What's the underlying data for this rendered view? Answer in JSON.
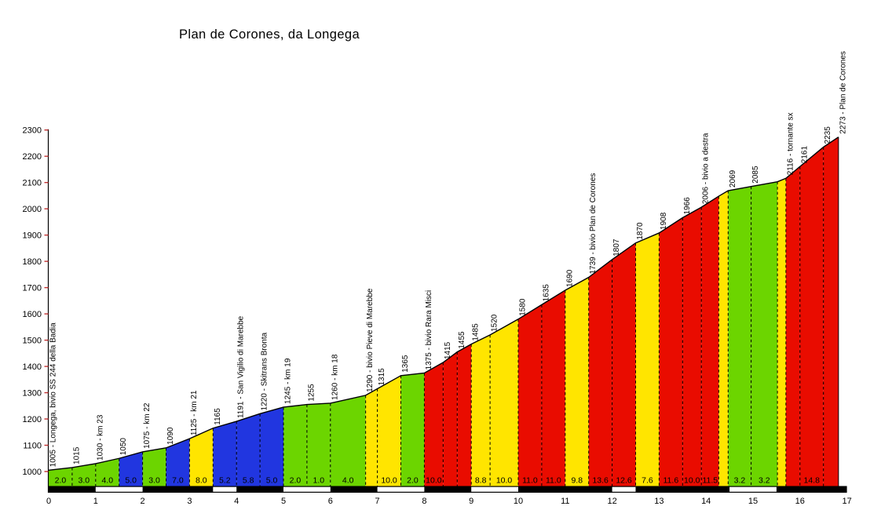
{
  "title": "Plan de Corones, da Longega",
  "chart_data": {
    "type": "area",
    "title": "Plan de Corones, da Longega",
    "xlabel": "",
    "ylabel": "",
    "xlim": [
      0,
      17
    ],
    "ylim": [
      1000,
      2300
    ],
    "grid": false,
    "legend": "none",
    "x_ticks": [
      0,
      1,
      2,
      3,
      4,
      5,
      6,
      7,
      8,
      9,
      10,
      11,
      12,
      13,
      14,
      15,
      16,
      17
    ],
    "y_ticks": [
      1000,
      1100,
      1200,
      1300,
      1400,
      1500,
      1600,
      1700,
      1800,
      1900,
      2000,
      2100,
      2200,
      2300
    ],
    "palette": {
      "green": "#6CD500",
      "blue": "#2136E0",
      "yellow": "#FFE500",
      "red": "#E90C00",
      "axis_tick_red": "#C03030",
      "line_black": "#000000"
    },
    "points": [
      {
        "km": 0.0,
        "elev": 1005,
        "label": "1005 - Longega, bivio SS 244 della Badia"
      },
      {
        "km": 0.5,
        "elev": 1015,
        "label": "1015"
      },
      {
        "km": 1.0,
        "elev": 1030,
        "label": "1030 - km 23"
      },
      {
        "km": 1.5,
        "elev": 1050,
        "label": "1050"
      },
      {
        "km": 2.0,
        "elev": 1075,
        "label": "1075 - km 22"
      },
      {
        "km": 2.5,
        "elev": 1090,
        "label": "1090"
      },
      {
        "km": 3.0,
        "elev": 1125,
        "label": "1125 - km 21"
      },
      {
        "km": 3.5,
        "elev": 1165,
        "label": "1165"
      },
      {
        "km": 4.0,
        "elev": 1191,
        "label": "1191 - San Vigilio di Marebbe"
      },
      {
        "km": 4.5,
        "elev": 1220,
        "label": "1220 - Skitrans Bronta"
      },
      {
        "km": 5.0,
        "elev": 1245,
        "label": "1245 - km 19"
      },
      {
        "km": 5.5,
        "elev": 1255,
        "label": "1255"
      },
      {
        "km": 6.0,
        "elev": 1260,
        "label": "1260 - km 18"
      },
      {
        "km": 6.75,
        "elev": 1290,
        "label": "1290 - bivio Pieve di Marebbe"
      },
      {
        "km": 7.0,
        "elev": 1315,
        "label": "1315"
      },
      {
        "km": 7.5,
        "elev": 1365,
        "label": "1365"
      },
      {
        "km": 8.0,
        "elev": 1375,
        "label": "1375 - bivio Rara Misci"
      },
      {
        "km": 8.4,
        "elev": 1415,
        "label": "1415"
      },
      {
        "km": 8.7,
        "elev": 1455,
        "label": "1455"
      },
      {
        "km": 9.0,
        "elev": 1485,
        "label": "1485"
      },
      {
        "km": 9.4,
        "elev": 1520,
        "label": "1520"
      },
      {
        "km": 10.0,
        "elev": 1580,
        "label": "1580"
      },
      {
        "km": 10.5,
        "elev": 1635,
        "label": "1635"
      },
      {
        "km": 11.0,
        "elev": 1690,
        "label": "1690"
      },
      {
        "km": 11.5,
        "elev": 1739,
        "label": "1739 - bivio Plan de Corones"
      },
      {
        "km": 12.0,
        "elev": 1807,
        "label": "1807"
      },
      {
        "km": 12.5,
        "elev": 1870,
        "label": "1870"
      },
      {
        "km": 13.0,
        "elev": 1908,
        "label": "1908"
      },
      {
        "km": 13.5,
        "elev": 1966,
        "label": "1966"
      },
      {
        "km": 13.9,
        "elev": 2006,
        "label": "2006 - bivio a destra"
      },
      {
        "km": 14.27,
        "elev": 2048,
        "label": null
      },
      {
        "km": 14.47,
        "elev": 2069,
        "label": "2069"
      },
      {
        "km": 14.96,
        "elev": 2085,
        "label": "2085"
      },
      {
        "km": 15.52,
        "elev": 2103,
        "label": null
      },
      {
        "km": 15.7,
        "elev": 2116,
        "label": "2116 - tornante sx"
      },
      {
        "km": 16.0,
        "elev": 2161,
        "label": "2161"
      },
      {
        "km": 16.5,
        "elev": 2235,
        "label": "2235"
      },
      {
        "km": 16.82,
        "elev": 2273,
        "label": "2273 - Plan de Corones"
      }
    ],
    "segments": [
      {
        "grad": "2.0",
        "color": "green"
      },
      {
        "grad": "3.0",
        "color": "green"
      },
      {
        "grad": "4.0",
        "color": "green"
      },
      {
        "grad": "5.0",
        "color": "blue"
      },
      {
        "grad": "3.0",
        "color": "green"
      },
      {
        "grad": "7.0",
        "color": "blue"
      },
      {
        "grad": "8.0",
        "color": "yellow"
      },
      {
        "grad": "5.2",
        "color": "blue"
      },
      {
        "grad": "5.8",
        "color": "blue"
      },
      {
        "grad": "5.0",
        "color": "blue"
      },
      {
        "grad": "2.0",
        "color": "green"
      },
      {
        "grad": "1.0",
        "color": "green"
      },
      {
        "grad": "4.0",
        "color": "green"
      },
      {
        "grad": null,
        "color": "yellow"
      },
      {
        "grad": "10.0",
        "color": "yellow"
      },
      {
        "grad": "2.0",
        "color": "green"
      },
      {
        "grad": "10.0",
        "color": "red"
      },
      {
        "grad": null,
        "color": "red"
      },
      {
        "grad": null,
        "color": "red"
      },
      {
        "grad": "8.8",
        "color": "yellow"
      },
      {
        "grad": "10.0",
        "color": "yellow"
      },
      {
        "grad": "11.0",
        "color": "red"
      },
      {
        "grad": "11.0",
        "color": "red"
      },
      {
        "grad": "9.8",
        "color": "yellow"
      },
      {
        "grad": "13.6",
        "color": "red"
      },
      {
        "grad": "12.6",
        "color": "red"
      },
      {
        "grad": "7.6",
        "color": "yellow"
      },
      {
        "grad": "11.6",
        "color": "red"
      },
      {
        "grad": "10.0",
        "color": "red"
      },
      {
        "grad": "11.5",
        "color": "red"
      },
      {
        "grad": null,
        "color": "yellow"
      },
      {
        "grad": "3.2",
        "color": "green"
      },
      {
        "grad": "3.2",
        "color": "green"
      },
      {
        "grad": null,
        "color": "yellow"
      },
      {
        "grad": null,
        "color": "red"
      },
      {
        "grad": "14.8",
        "color": "red"
      },
      {
        "grad": null,
        "color": "red"
      }
    ],
    "km_bar_white_runs": [
      [
        1,
        2
      ],
      [
        3.5,
        4
      ],
      [
        5,
        6
      ],
      [
        7,
        8
      ],
      [
        9,
        10
      ],
      [
        12,
        12.5
      ],
      [
        14.5,
        15.5
      ]
    ],
    "km_bar_range": [
      0,
      17
    ],
    "profile_end_km": 16.82
  }
}
